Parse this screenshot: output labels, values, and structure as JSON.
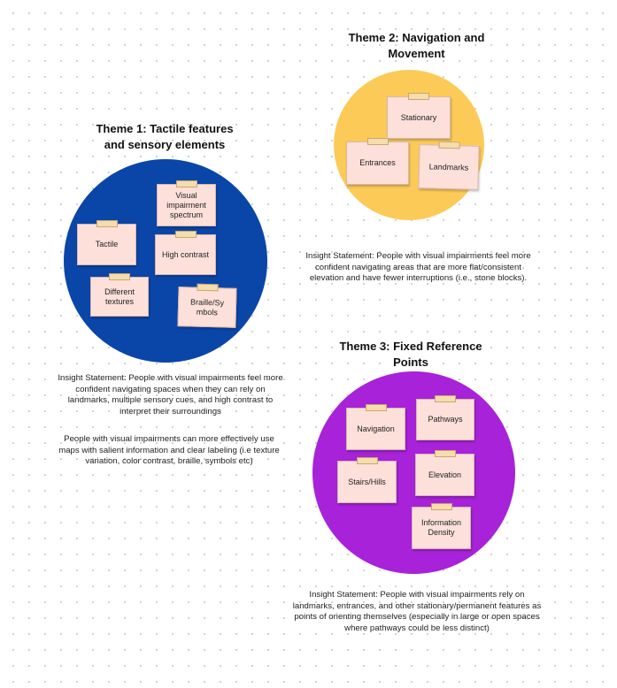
{
  "theme1": {
    "title": "Theme 1: Tactile features and sensory elements",
    "color": "#0a46a8",
    "notes": [
      "Visual impairment spectrum",
      "Tactile",
      "High contrast",
      "Different textures",
      "Braille/Sy mbols"
    ],
    "insight1": "Insight Statement: People with visual impairments feel more confident navigating spaces when they can rely on landmarks, multiple sensory cues, and high contrast to interpret their surroundings",
    "insight2": "People with visual impairments can more effectively use maps with salient information and clear labeling (i.e texture variation, color contrast, braille, symbols etc)"
  },
  "theme2": {
    "title": "Theme 2: Navigation and Movement",
    "color": "#fcca57",
    "notes": [
      "Stationary",
      "Entrances",
      "Landmarks"
    ],
    "insight": "Insight Statement: People with visual impairments feel more confident navigating areas that are more flat/consistent elevation and have fewer interruptions (i.e., stone blocks)."
  },
  "theme3": {
    "title": "Theme 3: Fixed Reference Points",
    "color": "#a722d8",
    "notes": [
      "Navigation",
      "Pathways",
      "Stairs/Hills",
      "Elevation",
      "Information Density"
    ],
    "insight": "Insight Statement: People with visual impairments rely on landmarks, entrances, and other stationary/permanent features as points of orienting themselves (especially in large or open spaces where pathways could be less distinct)"
  },
  "note_color": "#fde0da"
}
